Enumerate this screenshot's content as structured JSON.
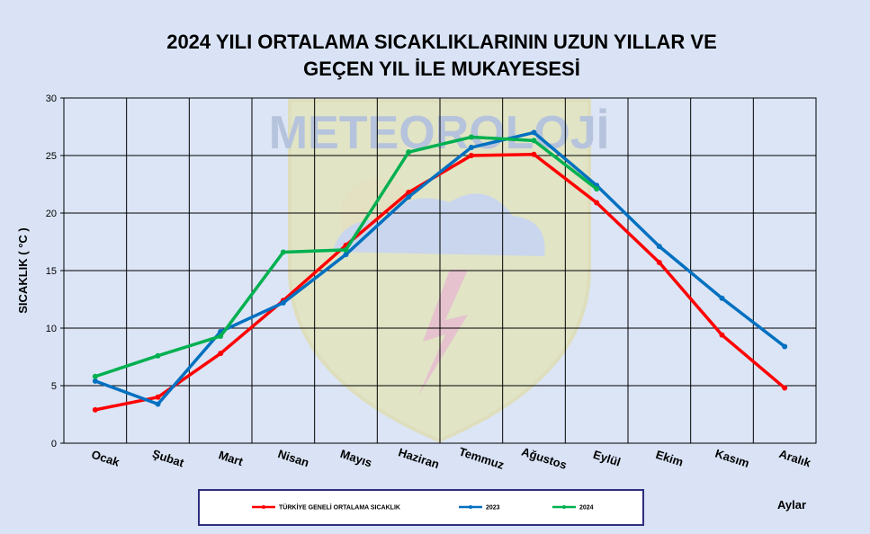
{
  "chart_data": {
    "type": "line",
    "title_lines": [
      "2024 YILI ORTALAMA SICAKLIKLARININ UZUN YILLAR VE",
      "GEÇEN  YIL İLE MUKAYESESİ"
    ],
    "xlabel": "Aylar",
    "ylabel": "SICAKLIK ( °C )",
    "categories": [
      "Ocak",
      "Şubat",
      "Mart",
      "Nisan",
      "Mayıs",
      "Haziran",
      "Temmuz",
      "Ağustos",
      "Eylül",
      "Ekim",
      "Kasım",
      "Aralık"
    ],
    "ylim": [
      0,
      30
    ],
    "yticks": [
      "0",
      "5",
      "10",
      "15",
      "20",
      "25",
      "30"
    ],
    "grid": true,
    "legend_position": "bottom",
    "watermark": "METEOROLOJİ",
    "series": [
      {
        "name": "TÜRKİYE GENELİ ORTALAMA SICAKLIK",
        "color": "#ff0000",
        "values": [
          2.9,
          4.0,
          7.8,
          12.4,
          17.2,
          21.8,
          25.0,
          25.1,
          20.9,
          15.7,
          9.4,
          4.8
        ]
      },
      {
        "name": "2023",
        "color": "#0070c0",
        "values": [
          5.4,
          3.4,
          9.7,
          12.2,
          16.4,
          21.4,
          25.7,
          27.0,
          22.4,
          17.1,
          12.6,
          8.4
        ]
      },
      {
        "name": "2024",
        "color": "#00b050",
        "values": [
          5.8,
          7.6,
          9.3,
          16.6,
          16.8,
          25.3,
          26.6,
          26.3,
          22.1,
          null,
          null,
          null
        ]
      }
    ]
  }
}
